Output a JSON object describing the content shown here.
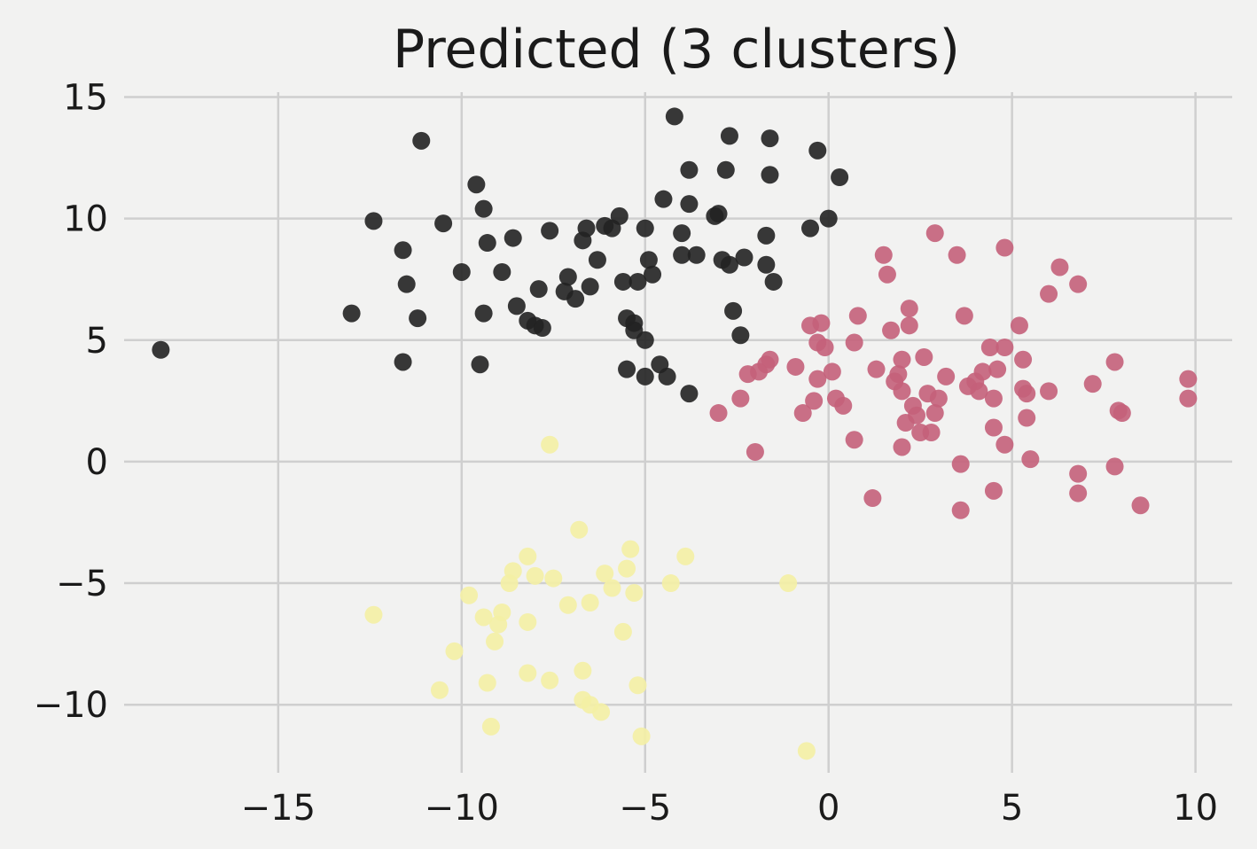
{
  "chart_data": {
    "type": "scatter",
    "title": "Predicted (3 clusters)",
    "xlabel": "",
    "ylabel": "",
    "xlim": [
      -19.2,
      11
    ],
    "ylim": [
      -12.8,
      15.2
    ],
    "xticks": [
      -15,
      -10,
      -5,
      0,
      5,
      10
    ],
    "yticks": [
      -10,
      -5,
      0,
      5,
      10,
      15
    ],
    "xtick_labels": [
      "−15",
      "−10",
      "−5",
      "0",
      "5",
      "10"
    ],
    "ytick_labels": [
      "−10",
      "−5",
      "0",
      "5",
      "10",
      "15"
    ],
    "grid": true,
    "legend": "none",
    "series": [
      {
        "color": "#222222",
        "points": [
          [
            -18.2,
            4.6
          ],
          [
            -13.0,
            6.1
          ],
          [
            -12.4,
            9.9
          ],
          [
            -11.6,
            8.7
          ],
          [
            -11.5,
            7.3
          ],
          [
            -11.2,
            5.9
          ],
          [
            -11.6,
            4.1
          ],
          [
            -11.1,
            13.2
          ],
          [
            -10.5,
            9.8
          ],
          [
            -10.0,
            7.8
          ],
          [
            -9.6,
            11.4
          ],
          [
            -9.4,
            10.4
          ],
          [
            -9.3,
            9.0
          ],
          [
            -9.4,
            6.1
          ],
          [
            -9.5,
            4.0
          ],
          [
            -8.9,
            7.8
          ],
          [
            -8.6,
            9.2
          ],
          [
            -8.5,
            6.4
          ],
          [
            -8.2,
            5.8
          ],
          [
            -8.0,
            5.6
          ],
          [
            -7.8,
            5.5
          ],
          [
            -7.9,
            7.1
          ],
          [
            -7.6,
            9.5
          ],
          [
            -7.2,
            7.0
          ],
          [
            -7.1,
            7.6
          ],
          [
            -6.9,
            6.7
          ],
          [
            -6.7,
            9.1
          ],
          [
            -6.6,
            9.6
          ],
          [
            -6.5,
            7.2
          ],
          [
            -6.3,
            8.3
          ],
          [
            -6.1,
            9.7
          ],
          [
            -5.9,
            9.6
          ],
          [
            -5.7,
            10.1
          ],
          [
            -5.6,
            7.4
          ],
          [
            -5.5,
            5.9
          ],
          [
            -5.3,
            5.7
          ],
          [
            -5.3,
            5.4
          ],
          [
            -5.5,
            3.8
          ],
          [
            -5.2,
            7.4
          ],
          [
            -5.0,
            9.6
          ],
          [
            -5.0,
            3.5
          ],
          [
            -5.0,
            5.0
          ],
          [
            -4.9,
            8.3
          ],
          [
            -4.8,
            7.7
          ],
          [
            -4.6,
            4.0
          ],
          [
            -4.5,
            10.8
          ],
          [
            -4.4,
            3.5
          ],
          [
            -4.2,
            14.2
          ],
          [
            -4.0,
            9.4
          ],
          [
            -4.0,
            8.5
          ],
          [
            -3.8,
            12.0
          ],
          [
            -3.8,
            10.6
          ],
          [
            -3.8,
            2.8
          ],
          [
            -3.6,
            8.5
          ],
          [
            -3.1,
            10.1
          ],
          [
            -3.0,
            10.2
          ],
          [
            -2.9,
            8.3
          ],
          [
            -2.8,
            12.0
          ],
          [
            -2.7,
            13.4
          ],
          [
            -2.7,
            8.1
          ],
          [
            -2.6,
            6.2
          ],
          [
            -2.4,
            5.2
          ],
          [
            -2.3,
            8.4
          ],
          [
            -1.6,
            13.3
          ],
          [
            -1.6,
            11.8
          ],
          [
            -1.7,
            9.3
          ],
          [
            -1.7,
            8.1
          ],
          [
            -1.5,
            7.4
          ],
          [
            -0.5,
            9.6
          ],
          [
            -0.3,
            12.8
          ],
          [
            0.0,
            10.0
          ],
          [
            0.3,
            11.7
          ]
        ]
      },
      {
        "color": "#c4607a",
        "points": [
          [
            -3.0,
            2.0
          ],
          [
            -2.4,
            2.6
          ],
          [
            -2.2,
            3.6
          ],
          [
            -2.0,
            0.4
          ],
          [
            -1.9,
            3.7
          ],
          [
            -1.7,
            4.0
          ],
          [
            -1.6,
            4.2
          ],
          [
            -0.9,
            3.9
          ],
          [
            -0.7,
            2.0
          ],
          [
            -0.5,
            5.6
          ],
          [
            -0.3,
            4.9
          ],
          [
            -0.2,
            5.7
          ],
          [
            -0.4,
            2.5
          ],
          [
            -0.3,
            3.4
          ],
          [
            -0.1,
            4.7
          ],
          [
            0.1,
            3.7
          ],
          [
            0.2,
            2.6
          ],
          [
            0.4,
            2.3
          ],
          [
            0.7,
            4.9
          ],
          [
            0.7,
            0.9
          ],
          [
            0.8,
            6.0
          ],
          [
            1.2,
            -1.5
          ],
          [
            1.3,
            3.8
          ],
          [
            1.5,
            8.5
          ],
          [
            1.6,
            7.7
          ],
          [
            1.7,
            5.4
          ],
          [
            1.8,
            3.3
          ],
          [
            1.9,
            3.6
          ],
          [
            2.0,
            4.2
          ],
          [
            2.0,
            2.9
          ],
          [
            2.0,
            0.6
          ],
          [
            2.1,
            1.6
          ],
          [
            2.2,
            5.6
          ],
          [
            2.2,
            6.3
          ],
          [
            2.3,
            2.3
          ],
          [
            2.4,
            1.9
          ],
          [
            2.5,
            1.2
          ],
          [
            2.6,
            4.3
          ],
          [
            2.7,
            2.8
          ],
          [
            2.8,
            1.2
          ],
          [
            2.9,
            9.4
          ],
          [
            2.9,
            2.0
          ],
          [
            3.0,
            2.6
          ],
          [
            3.2,
            3.5
          ],
          [
            3.5,
            8.5
          ],
          [
            3.6,
            -0.1
          ],
          [
            3.6,
            -2.0
          ],
          [
            3.7,
            6.0
          ],
          [
            3.8,
            3.1
          ],
          [
            4.0,
            3.3
          ],
          [
            4.1,
            2.9
          ],
          [
            4.2,
            3.7
          ],
          [
            4.4,
            4.7
          ],
          [
            4.5,
            2.6
          ],
          [
            4.5,
            1.4
          ],
          [
            4.5,
            -1.2
          ],
          [
            4.6,
            3.8
          ],
          [
            4.8,
            8.8
          ],
          [
            4.8,
            4.7
          ],
          [
            4.8,
            0.7
          ],
          [
            5.2,
            5.6
          ],
          [
            5.3,
            4.2
          ],
          [
            5.3,
            3.0
          ],
          [
            5.4,
            2.8
          ],
          [
            5.4,
            1.8
          ],
          [
            5.5,
            0.1
          ],
          [
            6.0,
            6.9
          ],
          [
            6.0,
            2.9
          ],
          [
            6.3,
            8.0
          ],
          [
            6.8,
            7.3
          ],
          [
            6.8,
            -0.5
          ],
          [
            6.8,
            -1.3
          ],
          [
            7.2,
            3.2
          ],
          [
            7.8,
            4.1
          ],
          [
            7.8,
            -0.2
          ],
          [
            7.9,
            2.1
          ],
          [
            8.0,
            2.0
          ],
          [
            8.5,
            -1.8
          ],
          [
            9.8,
            3.4
          ],
          [
            9.8,
            2.6
          ]
        ]
      },
      {
        "color": "#f4efa4",
        "points": [
          [
            -12.4,
            -6.3
          ],
          [
            -10.6,
            -9.4
          ],
          [
            -10.2,
            -7.8
          ],
          [
            -9.8,
            -5.5
          ],
          [
            -9.4,
            -6.4
          ],
          [
            -9.3,
            -9.1
          ],
          [
            -9.2,
            -10.9
          ],
          [
            -9.1,
            -7.4
          ],
          [
            -9.0,
            -6.7
          ],
          [
            -8.9,
            -6.2
          ],
          [
            -8.7,
            -5.0
          ],
          [
            -8.6,
            -4.5
          ],
          [
            -8.2,
            -8.7
          ],
          [
            -8.2,
            -3.9
          ],
          [
            -8.2,
            -6.6
          ],
          [
            -8.0,
            -4.7
          ],
          [
            -7.6,
            -9.0
          ],
          [
            -7.6,
            0.7
          ],
          [
            -7.5,
            -4.8
          ],
          [
            -7.1,
            -5.9
          ],
          [
            -6.8,
            -2.8
          ],
          [
            -6.7,
            -9.8
          ],
          [
            -6.7,
            -8.6
          ],
          [
            -6.5,
            -10.0
          ],
          [
            -6.5,
            -5.8
          ],
          [
            -6.2,
            -10.3
          ],
          [
            -6.1,
            -4.6
          ],
          [
            -5.9,
            -5.2
          ],
          [
            -5.6,
            -7.0
          ],
          [
            -5.5,
            -4.4
          ],
          [
            -5.4,
            -3.6
          ],
          [
            -5.3,
            -5.4
          ],
          [
            -5.2,
            -9.2
          ],
          [
            -5.1,
            -11.3
          ],
          [
            -4.3,
            -5.0
          ],
          [
            -3.9,
            -3.9
          ],
          [
            -1.1,
            -5.0
          ],
          [
            -0.6,
            -11.9
          ]
        ]
      }
    ]
  }
}
